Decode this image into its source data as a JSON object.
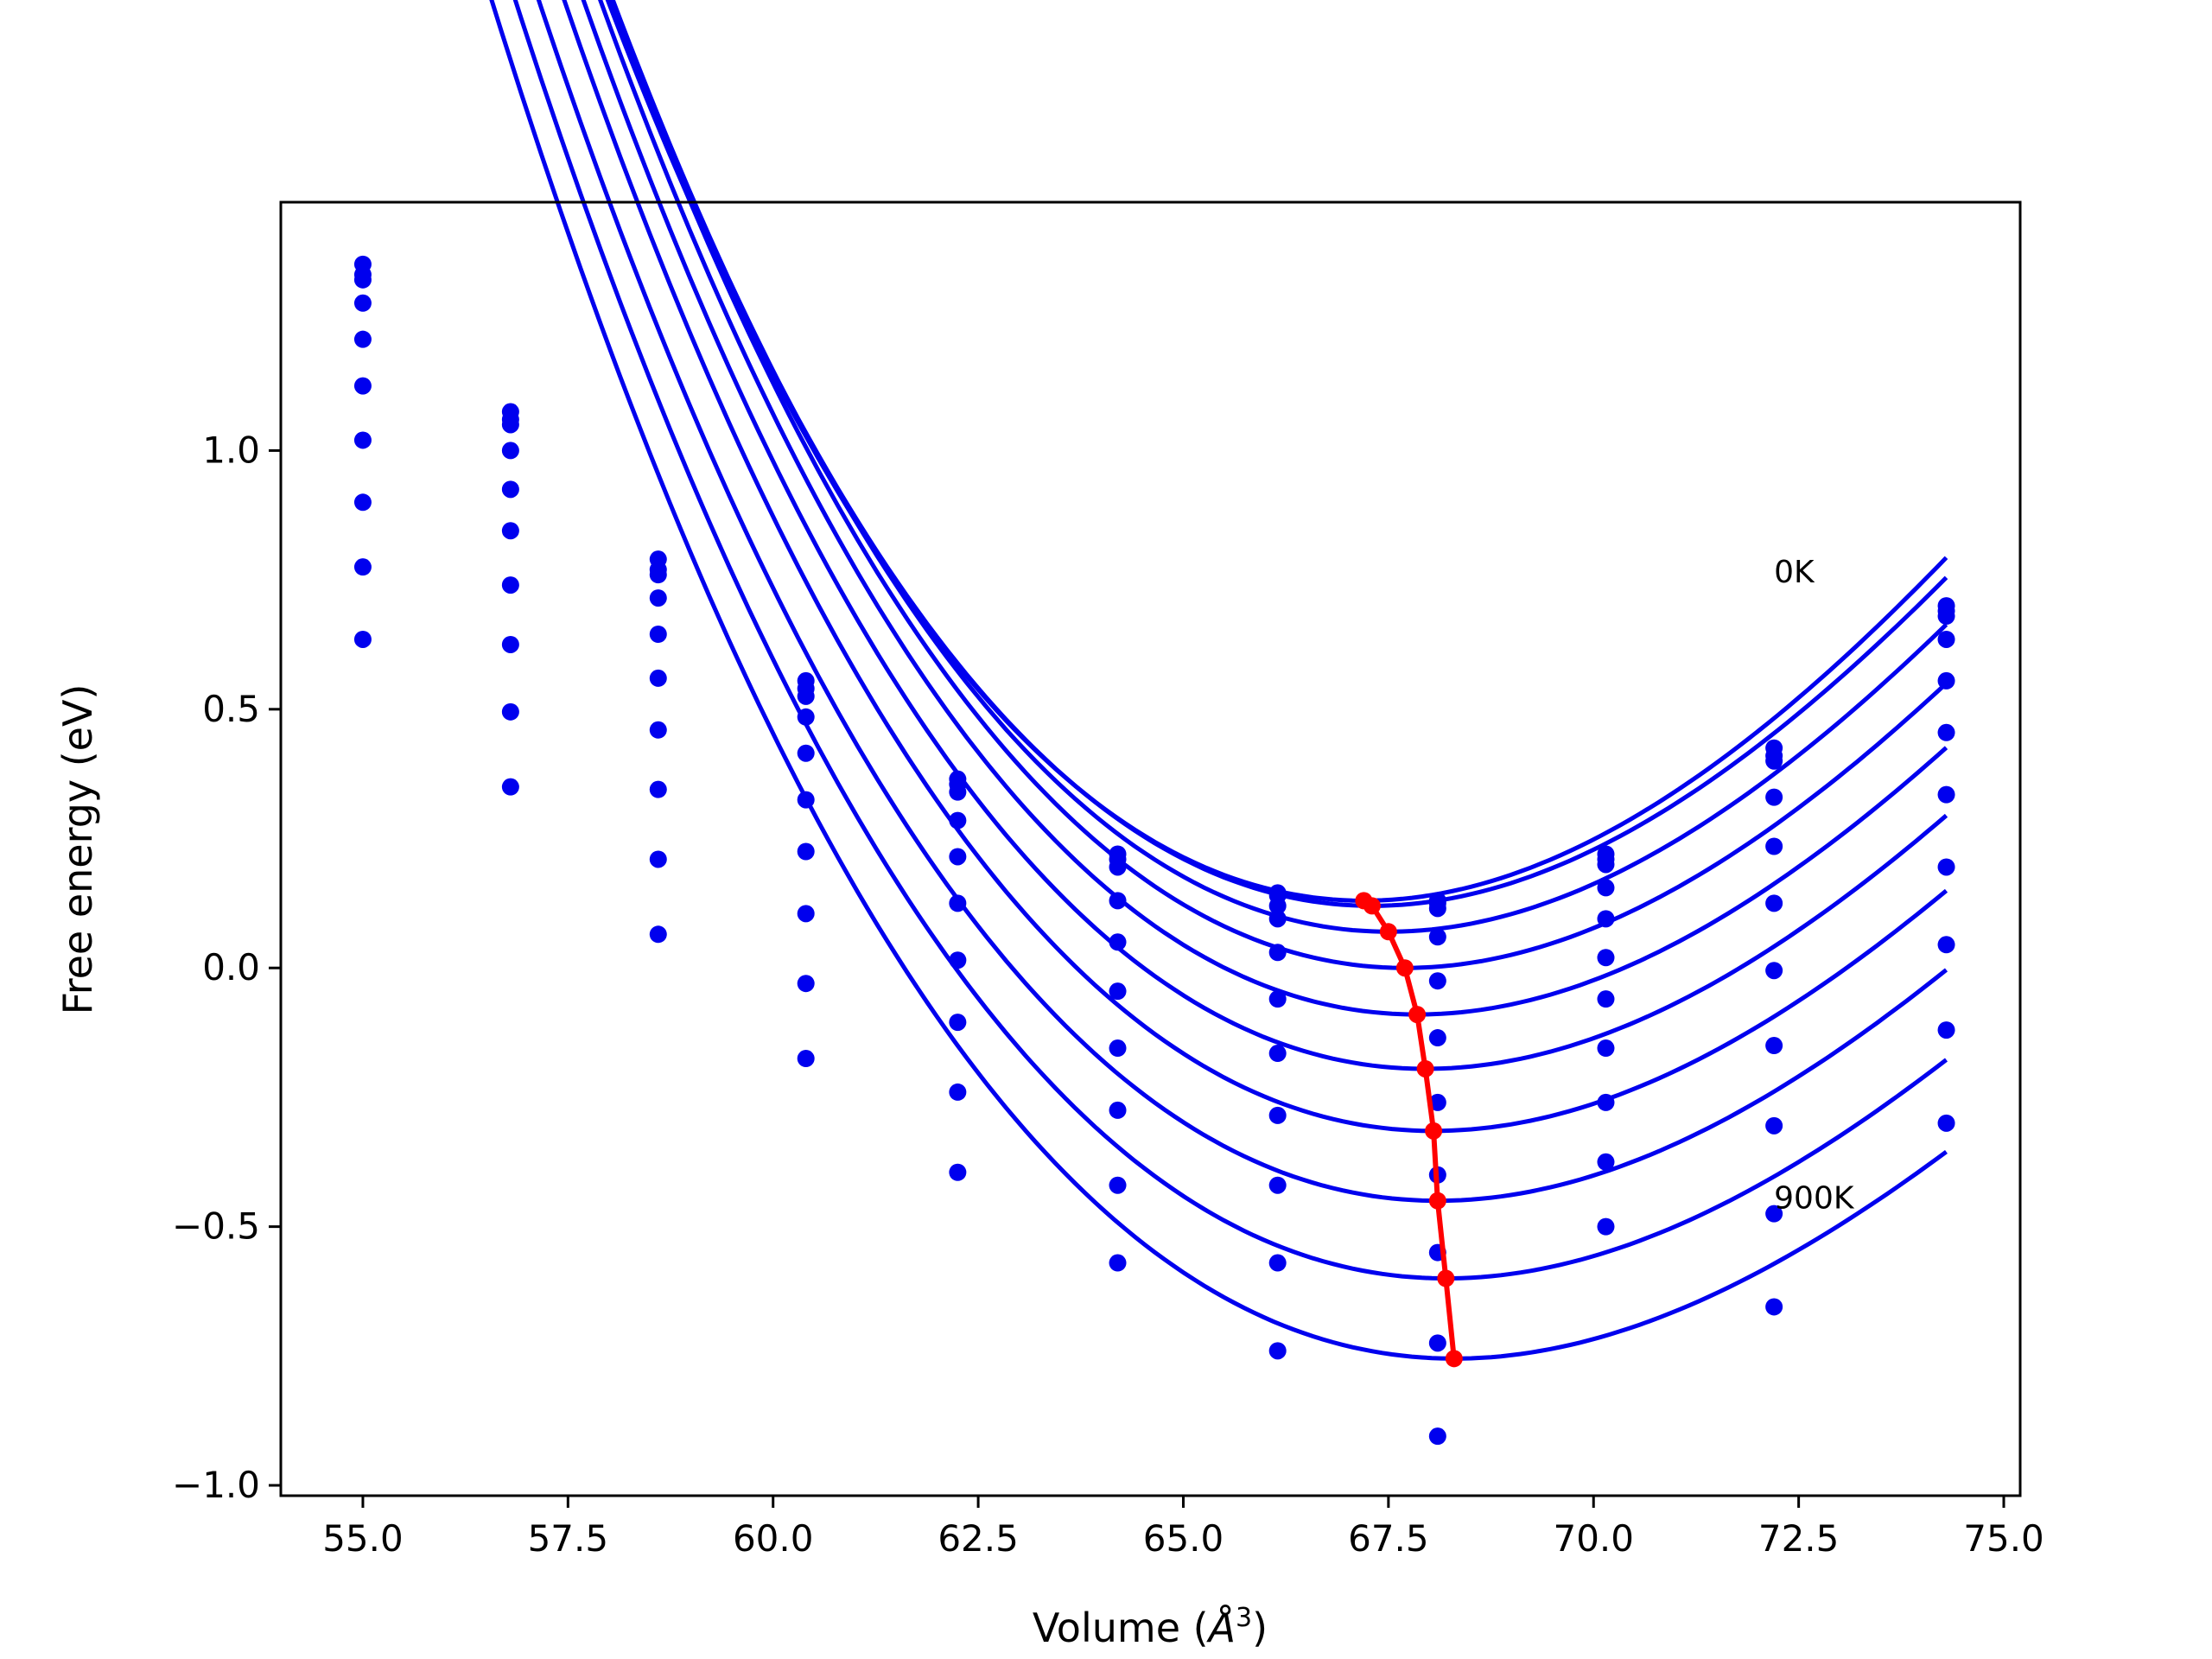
{
  "chart_data": {
    "type": "scatter",
    "title": "",
    "xlabel": "Volume (",
    "xlabel_sym": "Å",
    "xlabel_exp": "3",
    "xlabel_close": ")",
    "ylabel": "Free energy (eV)",
    "xlim": [
      54.0,
      75.2
    ],
    "ylim": [
      -1.02,
      1.48
    ],
    "xticks": [
      55.0,
      57.5,
      60.0,
      62.5,
      65.0,
      67.5,
      70.0,
      72.5,
      75.0
    ],
    "xtick_labels": [
      "55.0",
      "57.5",
      "60.0",
      "62.5",
      "65.0",
      "67.5",
      "70.0",
      "72.5",
      "75.0"
    ],
    "yticks": [
      1.0,
      0.5,
      0.0,
      -0.5,
      -1.0
    ],
    "ytick_labels": [
      "1.0",
      "0.5",
      "0.0",
      "−0.5",
      "−1.0"
    ],
    "grid": false,
    "colors": {
      "points": "#0000ee",
      "fits": "#0000ee",
      "minima": "#ff0000"
    },
    "x": [
      55.0,
      56.8,
      58.6,
      60.4,
      62.25,
      64.2,
      66.15,
      68.1,
      70.15,
      72.2,
      74.3
    ],
    "series": [
      {
        "temperature_index": 0,
        "values": [
          1.36,
          1.075,
          0.79,
          0.555,
          0.365,
          0.22,
          0.145,
          0.13,
          0.22,
          0.425,
          0.7
        ],
        "fit": {
          "v0": 67.2,
          "e0": 0.13,
          "a": 0.01635,
          "b": 0.00045
        }
      },
      {
        "temperature_index": 1,
        "values": [
          1.34,
          1.06,
          0.77,
          0.54,
          0.355,
          0.21,
          0.14,
          0.125,
          0.21,
          0.41,
          0.69
        ],
        "fit": {
          "v0": 67.3,
          "e0": 0.12,
          "a": 0.0161,
          "b": 0.00045
        }
      },
      {
        "temperature_index": 2,
        "values": [
          1.33,
          1.05,
          0.76,
          0.525,
          0.34,
          0.195,
          0.12,
          0.115,
          0.2,
          0.4,
          0.68
        ],
        "fit": {
          "v0": 67.5,
          "e0": 0.07,
          "a": 0.0159,
          "b": 0.00045
        }
      },
      {
        "temperature_index": 3,
        "values": [
          1.285,
          1.0,
          0.715,
          0.485,
          0.285,
          0.13,
          0.095,
          0.06,
          0.155,
          0.33,
          0.635
        ],
        "fit": {
          "v0": 67.7,
          "e0": 0.0,
          "a": 0.0156,
          "b": 0.00045
        }
      },
      {
        "temperature_index": 4,
        "values": [
          1.215,
          0.925,
          0.645,
          0.415,
          0.215,
          0.05,
          0.03,
          -0.025,
          0.095,
          0.235,
          0.555
        ],
        "fit": {
          "v0": 67.85,
          "e0": -0.09,
          "a": 0.0153,
          "b": 0.00045
        }
      },
      {
        "temperature_index": 5,
        "values": [
          1.125,
          0.845,
          0.56,
          0.325,
          0.125,
          -0.045,
          -0.06,
          -0.135,
          0.02,
          0.125,
          0.455
        ],
        "fit": {
          "v0": 67.95,
          "e0": -0.195,
          "a": 0.015,
          "b": 0.00045
        }
      },
      {
        "temperature_index": 6,
        "values": [
          1.02,
          0.74,
          0.46,
          0.225,
          0.015,
          -0.155,
          -0.165,
          -0.26,
          -0.06,
          -0.005,
          0.335
        ],
        "fit": {
          "v0": 68.05,
          "e0": -0.315,
          "a": 0.0147,
          "b": 0.00045
        }
      },
      {
        "temperature_index": 7,
        "values": [
          0.9,
          0.625,
          0.345,
          0.105,
          -0.105,
          -0.275,
          -0.285,
          -0.4,
          -0.155,
          -0.15,
          0.195
        ],
        "fit": {
          "v0": 68.1,
          "e0": -0.45,
          "a": 0.0144,
          "b": 0.00045
        }
      },
      {
        "temperature_index": 8,
        "values": [
          0.775,
          0.495,
          0.21,
          -0.03,
          -0.24,
          -0.42,
          -0.42,
          -0.55,
          -0.26,
          -0.305,
          0.045
        ],
        "fit": {
          "v0": 68.2,
          "e0": -0.6,
          "a": 0.0141,
          "b": 0.00045
        }
      },
      {
        "temperature_index": 9,
        "values": [
          0.635,
          0.35,
          0.065,
          -0.175,
          -0.395,
          -0.57,
          -0.57,
          -0.725,
          -0.375,
          -0.475,
          -0.12
        ],
        "fit": {
          "v0": 68.3,
          "e0": -0.755,
          "a": 0.0138,
          "b": 0.00045
        }
      },
      {
        "temperature_index": 10,
        "values": [
          null,
          null,
          null,
          null,
          null,
          null,
          -0.74,
          -0.905,
          -0.5,
          -0.655,
          -0.3
        ],
        "fit": null
      }
    ],
    "minima": {
      "x": [
        67.2,
        67.3,
        67.5,
        67.7,
        67.85,
        67.95,
        68.05,
        68.1,
        68.2,
        68.3
      ],
      "y": [
        0.13,
        0.12,
        0.07,
        0.0,
        -0.09,
        -0.195,
        -0.315,
        -0.45,
        -0.6,
        -0.755
      ]
    },
    "annotations": [
      {
        "text": "0K",
        "x": 72.2,
        "y": 0.745
      },
      {
        "text": "900K",
        "x": 72.2,
        "y": -0.465
      }
    ]
  }
}
